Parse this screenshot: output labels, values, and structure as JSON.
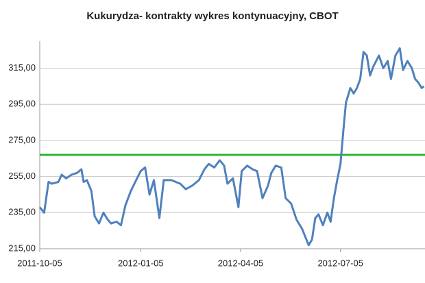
{
  "chart_data": {
    "type": "line",
    "title": "Kukurydza- kontrakty wykres kontynuacyjny, CBOT",
    "x": [
      "2011-10-05",
      "2011-10-09",
      "2011-10-13",
      "2011-10-16",
      "2011-10-22",
      "2011-10-25",
      "2011-10-29",
      "2011-11-03",
      "2011-11-08",
      "2011-11-12",
      "2011-11-14",
      "2011-11-17",
      "2011-11-21",
      "2011-11-24",
      "2011-11-28",
      "2011-12-02",
      "2011-12-06",
      "2011-12-09",
      "2011-12-14",
      "2011-12-18",
      "2011-12-22",
      "2011-12-27",
      "2011-12-31",
      "2012-01-05",
      "2012-01-09",
      "2012-01-13",
      "2012-01-17",
      "2012-01-22",
      "2012-01-26",
      "2012-02-02",
      "2012-02-10",
      "2012-02-15",
      "2012-02-21",
      "2012-02-27",
      "2012-03-03",
      "2012-03-07",
      "2012-03-12",
      "2012-03-17",
      "2012-03-21",
      "2012-03-24",
      "2012-03-29",
      "2012-04-03",
      "2012-04-06",
      "2012-04-11",
      "2012-04-16",
      "2012-04-20",
      "2012-04-25",
      "2012-04-30",
      "2012-05-03",
      "2012-05-07",
      "2012-05-12",
      "2012-05-16",
      "2012-05-21",
      "2012-05-26",
      "2012-05-31",
      "2012-06-06",
      "2012-06-09",
      "2012-06-12",
      "2012-06-15",
      "2012-06-19",
      "2012-06-23",
      "2012-06-26",
      "2012-06-29",
      "2012-07-02",
      "2012-07-05",
      "2012-07-08",
      "2012-07-10",
      "2012-07-14",
      "2012-07-17",
      "2012-07-20",
      "2012-07-23",
      "2012-07-26",
      "2012-07-29",
      "2012-08-01",
      "2012-08-04",
      "2012-08-09",
      "2012-08-13",
      "2012-08-17",
      "2012-08-20",
      "2012-08-24",
      "2012-08-28",
      "2012-08-31",
      "2012-09-04",
      "2012-09-08",
      "2012-09-11",
      "2012-09-14",
      "2012-09-17",
      "2012-09-19"
    ],
    "series": [
      {
        "color": "#4f81bd",
        "values": [
          238,
          235,
          252,
          251,
          252,
          256,
          254,
          256,
          257,
          259,
          252,
          253,
          247,
          233,
          229,
          235,
          231,
          229,
          230,
          228,
          239,
          247,
          252,
          258,
          260,
          245,
          253,
          232,
          253,
          253,
          251,
          248,
          250,
          253,
          259,
          262,
          260,
          264,
          261,
          251,
          254,
          238,
          258,
          261,
          259,
          258,
          243,
          250,
          257,
          261,
          260,
          243,
          240,
          231,
          226,
          217,
          220,
          232,
          234,
          228,
          235,
          230,
          243,
          253,
          262,
          283,
          296,
          304,
          301,
          304,
          309,
          324,
          322,
          311,
          316,
          322,
          315,
          319,
          309,
          322,
          326,
          314,
          319,
          315,
          309,
          307,
          304,
          305
        ]
      }
    ],
    "hline": {
      "value": 267,
      "color": "#2db52d"
    },
    "xlim": [
      "2011-10-05",
      "2012-09-20"
    ],
    "xticks": [
      "2011-10-05",
      "2012-01-05",
      "2012-04-05",
      "2012-07-05"
    ],
    "ylim": [
      215,
      330
    ],
    "yticks": [
      {
        "value": 215,
        "label": "215,00"
      },
      {
        "value": 235,
        "label": "235,00"
      },
      {
        "value": 255,
        "label": "255,00"
      },
      {
        "value": 275,
        "label": "275,00"
      },
      {
        "value": 295,
        "label": "295,00"
      },
      {
        "value": 315,
        "label": "315,00"
      }
    ],
    "grid": true
  }
}
